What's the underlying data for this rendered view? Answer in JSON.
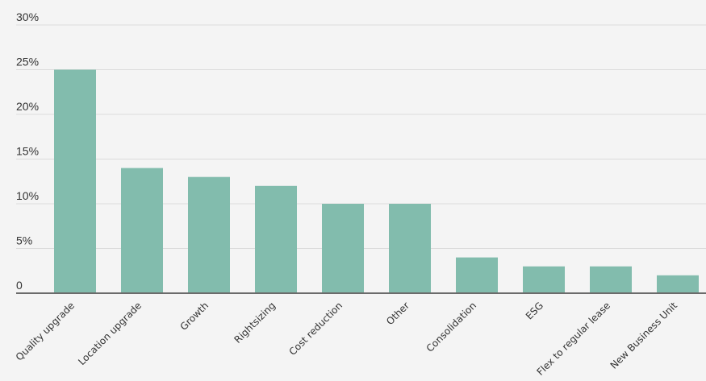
{
  "chart_data": {
    "type": "bar",
    "categories": [
      "Quality upgrade",
      "Location upgrade",
      "Growth",
      "Rightsizing",
      "Cost reduction",
      "Other",
      "Consolidation",
      "ESG",
      "Flex to regular lease",
      "New Business Unit"
    ],
    "values": [
      25,
      14,
      13,
      12,
      10,
      10,
      4,
      3,
      3,
      2
    ],
    "yticks": [
      0,
      5,
      10,
      15,
      20,
      25,
      30
    ],
    "ytick_labels": [
      "0",
      "5%",
      "10%",
      "15%",
      "20%",
      "25%",
      "30%"
    ],
    "ylim": [
      0,
      30
    ],
    "title": "",
    "xlabel": "",
    "ylabel": "",
    "grid": true,
    "bar_color": "#82bcad",
    "grid_color": "#dcdcdc",
    "axis_color": "#6b6b6b",
    "background": "#f4f4f4"
  }
}
